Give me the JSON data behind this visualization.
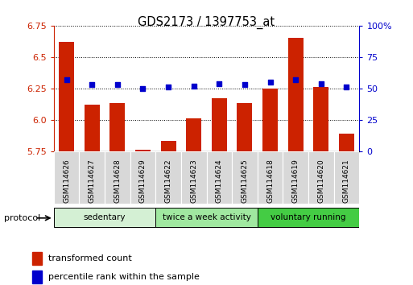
{
  "title": "GDS2173 / 1397753_at",
  "samples": [
    "GSM114626",
    "GSM114627",
    "GSM114628",
    "GSM114629",
    "GSM114622",
    "GSM114623",
    "GSM114624",
    "GSM114625",
    "GSM114618",
    "GSM114619",
    "GSM114620",
    "GSM114621"
  ],
  "transformed_count": [
    6.62,
    6.12,
    6.13,
    5.76,
    5.83,
    6.01,
    6.17,
    6.13,
    6.25,
    6.65,
    6.26,
    5.89
  ],
  "percentile_rank": [
    57,
    53,
    53,
    50,
    51,
    52,
    54,
    53,
    55,
    57,
    54,
    51
  ],
  "groups": [
    {
      "label": "sedentary",
      "start": 0,
      "end": 4,
      "color": "#d4f0d4"
    },
    {
      "label": "twice a week activity",
      "start": 4,
      "end": 8,
      "color": "#a0e8a0"
    },
    {
      "label": "voluntary running",
      "start": 8,
      "end": 12,
      "color": "#44cc44"
    }
  ],
  "ylim_left": [
    5.75,
    6.75
  ],
  "ylim_right": [
    0,
    100
  ],
  "yticks_left": [
    5.75,
    6.0,
    6.25,
    6.5,
    6.75
  ],
  "yticks_right": [
    0,
    25,
    50,
    75,
    100
  ],
  "ytick_labels_right": [
    "0",
    "25",
    "50",
    "75",
    "100%"
  ],
  "bar_color": "#cc2200",
  "dot_color": "#0000cc",
  "bar_width": 0.6,
  "bg_color": "#ffffff",
  "legend_labels": [
    "transformed count",
    "percentile rank within the sample"
  ]
}
